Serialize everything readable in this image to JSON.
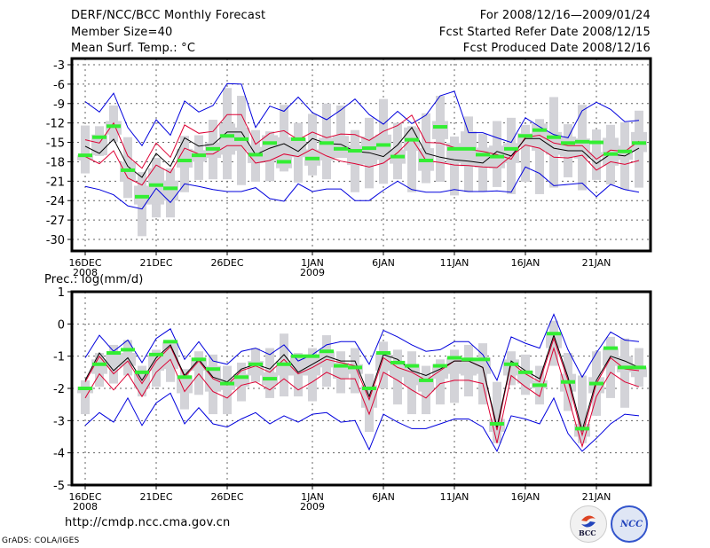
{
  "header": {
    "title": "DERF/NCC/BCC Monthly Forecast",
    "member_size": "Member Size=40",
    "top_variable": "Mean Surf. Temp.: °C",
    "period": "For 2008/12/16—2009/01/24",
    "started_date": "Fcst Started Refer Date 2008/12/15",
    "produced_date": "Fcst Produced Date 2008/12/16"
  },
  "footer": {
    "url": "http://cmdp.ncc.cma.gov.cn",
    "grads_credit": "GrADS: COLA/IGES",
    "logo_bcc": "BCC",
    "logo_ncc": "NCC"
  },
  "colors": {
    "envelope": "#0000dd",
    "percentile": "#dd0033",
    "mean": "#000000",
    "observed": "#33ee33",
    "spread": "#d3d3d8"
  },
  "chart_data": [
    {
      "type": "line",
      "title": "Mean Surf. Temp.: °C",
      "xlabel": "",
      "ylabel": "",
      "ylim": [
        -32,
        -2
      ],
      "yticks": [
        -3,
        -6,
        -9,
        -12,
        -15,
        -18,
        -21,
        -24,
        -27,
        -30
      ],
      "ytick_labels": [
        "-3",
        "-6",
        "-9",
        "-12",
        "-15",
        "-18",
        "-21",
        "-24",
        "-27",
        "-30"
      ],
      "xticks": [
        0,
        5,
        10,
        16,
        21,
        26,
        31,
        36
      ],
      "xtick_labels": [
        "16DEC",
        "21DEC",
        "26DEC",
        "1JAN",
        "6JAN",
        "11JAN",
        "16JAN",
        "21JAN"
      ],
      "xtick_sublabels": [
        "2008",
        "",
        "",
        "2009",
        "",
        "",
        "",
        ""
      ],
      "grid": true,
      "x_days": 40,
      "series": [
        {
          "name": "max",
          "color_key": "envelope",
          "values": [
            -8.7,
            -10.3,
            -7.4,
            -12.7,
            -15.5,
            -11.5,
            -13.9,
            -8.6,
            -10.3,
            -9.3,
            -5.9,
            -6.0,
            -12.7,
            -9.4,
            -10.2,
            -8.0,
            -10.4,
            -11.5,
            -10.0,
            -8.3,
            -10.7,
            -12.2,
            -10.2,
            -12.1,
            -10.8,
            -7.8,
            -7.1,
            -13.5,
            -13.5,
            -14.3,
            -15.0,
            -11.2,
            -12.6,
            -13.8,
            -14.3,
            -10.1,
            -8.8,
            -9.9,
            -11.8,
            -11.6
          ]
        },
        {
          "name": "min",
          "color_key": "envelope",
          "values": [
            -21.8,
            -22.3,
            -23.1,
            -24.8,
            -25.3,
            -22.1,
            -24.3,
            -21.4,
            -21.8,
            -22.3,
            -22.6,
            -22.6,
            -22.0,
            -23.7,
            -24.1,
            -21.4,
            -22.6,
            -22.2,
            -22.2,
            -24.0,
            -24.0,
            -22.4,
            -21.0,
            -22.3,
            -22.7,
            -22.7,
            -22.3,
            -22.6,
            -22.6,
            -22.5,
            -22.7,
            -18.8,
            -19.8,
            -21.7,
            -21.5,
            -21.3,
            -23.4,
            -21.5,
            -22.3,
            -22.7
          ]
        },
        {
          "name": "upper",
          "color_key": "percentile",
          "values": [
            -14.6,
            -15.1,
            -12.0,
            -17.1,
            -19.0,
            -15.1,
            -17.3,
            -12.3,
            -13.6,
            -13.3,
            -10.7,
            -10.7,
            -15.3,
            -13.6,
            -13.2,
            -14.6,
            -13.4,
            -14.3,
            -13.7,
            -13.8,
            -14.7,
            -13.3,
            -12.4,
            -10.8,
            -15.0,
            -15.1,
            -15.8,
            -16.1,
            -16.4,
            -16.9,
            -17.6,
            -14.2,
            -13.9,
            -15.1,
            -15.5,
            -15.5,
            -17.6,
            -16.2,
            -16.4,
            -14.8
          ]
        },
        {
          "name": "lower",
          "color_key": "percentile",
          "values": [
            -17.2,
            -18.3,
            -16.3,
            -20.5,
            -21.6,
            -18.5,
            -19.7,
            -15.9,
            -16.8,
            -16.8,
            -15.5,
            -15.5,
            -18.2,
            -17.8,
            -16.8,
            -17.2,
            -16.0,
            -17.1,
            -17.9,
            -18.3,
            -18.8,
            -18.2,
            -16.6,
            -14.4,
            -17.8,
            -18.1,
            -18.5,
            -18.6,
            -18.8,
            -18.9,
            -17.1,
            -15.4,
            -15.9,
            -17.3,
            -17.4,
            -17.0,
            -19.3,
            -18.0,
            -18.4,
            -17.8
          ]
        },
        {
          "name": "ensemble_mean",
          "color_key": "mean",
          "values": [
            -15.6,
            -16.7,
            -14.5,
            -18.7,
            -20.4,
            -16.7,
            -18.7,
            -14.3,
            -15.6,
            -15.3,
            -13.4,
            -13.4,
            -16.9,
            -15.9,
            -15.2,
            -16.4,
            -14.4,
            -15.2,
            -15.3,
            -16.4,
            -16.6,
            -17.2,
            -15.4,
            -12.7,
            -16.7,
            -17.3,
            -17.7,
            -17.9,
            -18.2,
            -16.4,
            -17.1,
            -14.4,
            -14.4,
            -15.9,
            -16.3,
            -16.3,
            -18.3,
            -16.8,
            -17.1,
            -15.9
          ]
        },
        {
          "name": "observed",
          "color_key": "observed",
          "values": [
            -17.0,
            -14.2,
            -12.5,
            -19.3,
            -23.4,
            -21.6,
            -22.1,
            -17.8,
            -17.0,
            -16.0,
            -14.0,
            -14.5,
            -16.9,
            -15.1,
            -18.0,
            -14.5,
            -17.5,
            -15.1,
            -16.0,
            -16.3,
            -15.9,
            -15.4,
            -17.2,
            -14.6,
            -17.8,
            -12.6,
            -16.0,
            -16.0,
            -16.9,
            -17.2,
            -16.0,
            -14.0,
            -13.1,
            -14.2,
            -15.1,
            -14.9,
            -15.0,
            -16.8,
            -16.4,
            -15.1
          ]
        },
        {
          "name": "spread_hi",
          "color_key": "spread",
          "values": [
            -12.4,
            -12.5,
            -9.3,
            -14.2,
            -19.6,
            -17.4,
            -19.0,
            -14.0,
            -13.9,
            -11.5,
            -6.6,
            -7.8,
            -13.1,
            -13.3,
            -9.2,
            -12.0,
            -10.6,
            -9.0,
            -9.3,
            -13.1,
            -11.2,
            -8.3,
            -12.0,
            -12.5,
            -10.5,
            -7.8,
            -14.1,
            -11.0,
            -13.7,
            -11.7,
            -11.2,
            -12.3,
            -11.4,
            -8.0,
            -12.2,
            -9.2,
            -13.0,
            -12.3,
            -11.9,
            -10.1
          ]
        },
        {
          "name": "spread_lo",
          "color_key": "spread",
          "values": [
            -19.8,
            -17.1,
            -14.9,
            -23.6,
            -29.5,
            -26.6,
            -26.6,
            -22.7,
            -20.8,
            -20.7,
            -20.7,
            -21.6,
            -21.1,
            -21.0,
            -19.5,
            -21.2,
            -20.1,
            -20.7,
            -17.3,
            -22.7,
            -22.1,
            -21.4,
            -20.7,
            -22.7,
            -21.3,
            -21.1,
            -23.2,
            -22.7,
            -22.6,
            -21.9,
            -23.0,
            -21.1,
            -23.0,
            -22.0,
            -20.4,
            -22.4,
            -20.8,
            -21.5,
            -22.3,
            -22.0
          ]
        },
        {
          "name": "inner_hi",
          "color_key": "spread",
          "values": [
            -17.0,
            -13.8,
            -11.7,
            -18.0,
            -21.7,
            -19.0,
            -20.9,
            -16.0,
            -16.2,
            -15.0,
            -12.1,
            -12.7,
            -15.7,
            -13.9,
            -14.2,
            -14.3,
            -16.1,
            -14.3,
            -14.0,
            -15.4,
            -14.1,
            -13.8,
            -16.1,
            -12.7,
            -15.9,
            -11.7,
            -15.1,
            -13.3,
            -15.8,
            -15.5,
            -15.1,
            -13.6,
            -12.1,
            -13.4,
            -14.1,
            -14.4,
            -16.5,
            -14.3,
            -15.5,
            -13.4
          ]
        },
        {
          "name": "inner_lo",
          "color_key": "spread",
          "values": [
            -17.8,
            -17.0,
            -13.8,
            -21.1,
            -24.6,
            -24.6,
            -24.0,
            -18.9,
            -18.0,
            -17.4,
            -16.9,
            -16.3,
            -18.2,
            -17.9,
            -19.0,
            -17.3,
            -18.6,
            -17.8,
            -17.4,
            -18.5,
            -18.4,
            -17.7,
            -18.3,
            -16.3,
            -19.4,
            -14.5,
            -18.2,
            -18.7,
            -18.9,
            -19.0,
            -18.2,
            -15.7,
            -16.3,
            -16.9,
            -17.2,
            -17.5,
            -17.3,
            -18.6,
            -17.7,
            -16.5
          ]
        }
      ]
    },
    {
      "type": "line",
      "title": "Prec.: log(mm/d)",
      "xlabel": "",
      "ylabel": "",
      "ylim": [
        -5,
        1
      ],
      "yticks": [
        1,
        0,
        -1,
        -2,
        -3,
        -4,
        -5
      ],
      "ytick_labels": [
        "1",
        "0",
        "-1",
        "-2",
        "-3",
        "-4",
        "-5"
      ],
      "xticks": [
        0,
        5,
        10,
        16,
        21,
        26,
        31,
        36
      ],
      "xtick_labels": [
        "16DEC",
        "21DEC",
        "26DEC",
        "1JAN",
        "6JAN",
        "11JAN",
        "16JAN",
        "21JAN"
      ],
      "xtick_sublabels": [
        "2008",
        "",
        "",
        "2009",
        "",
        "",
        "",
        ""
      ],
      "grid": true,
      "x_days": 40,
      "series": [
        {
          "name": "max",
          "color_key": "envelope",
          "values": [
            -1.05,
            -0.35,
            -0.85,
            -0.5,
            -1.2,
            -0.45,
            -0.15,
            -1.1,
            -0.55,
            -1.15,
            -1.25,
            -0.85,
            -0.75,
            -0.95,
            -0.65,
            -1.15,
            -0.95,
            -0.65,
            -0.55,
            -0.55,
            -1.25,
            -0.2,
            -0.4,
            -0.65,
            -0.85,
            -0.8,
            -0.55,
            -0.55,
            -0.95,
            -1.75,
            -0.4,
            -0.6,
            -0.75,
            0.3,
            -0.8,
            -1.65,
            -0.9,
            -0.25,
            -0.5,
            -0.55
          ]
        },
        {
          "name": "min",
          "color_key": "envelope",
          "values": [
            -3.15,
            -2.75,
            -3.05,
            -2.3,
            -3.15,
            -2.45,
            -2.15,
            -3.1,
            -2.6,
            -3.1,
            -3.2,
            -2.95,
            -2.75,
            -3.1,
            -2.85,
            -3.05,
            -2.8,
            -2.75,
            -3.05,
            -3.0,
            -3.9,
            -2.8,
            -3.05,
            -3.25,
            -3.25,
            -3.1,
            -2.95,
            -2.95,
            -3.2,
            -3.95,
            -2.85,
            -2.95,
            -3.1,
            -2.3,
            -3.4,
            -3.95,
            -3.55,
            -3.1,
            -2.8,
            -2.85
          ]
        },
        {
          "name": "upper",
          "color_key": "percentile",
          "values": [
            -1.8,
            -1.0,
            -1.55,
            -1.15,
            -1.85,
            -1.15,
            -0.7,
            -1.65,
            -1.15,
            -1.7,
            -1.9,
            -1.45,
            -1.3,
            -1.5,
            -1.1,
            -1.55,
            -1.35,
            -1.1,
            -1.2,
            -1.3,
            -2.35,
            -1.05,
            -1.35,
            -1.5,
            -1.75,
            -1.45,
            -1.15,
            -1.15,
            -1.35,
            -3.3,
            -1.2,
            -1.55,
            -1.8,
            -0.45,
            -1.75,
            -3.45,
            -1.85,
            -1.05,
            -1.4,
            -1.45
          ]
        },
        {
          "name": "lower",
          "color_key": "percentile",
          "values": [
            -2.3,
            -1.55,
            -2.05,
            -1.55,
            -2.25,
            -1.5,
            -1.1,
            -2.1,
            -1.55,
            -2.1,
            -2.3,
            -1.9,
            -1.8,
            -2.05,
            -1.7,
            -2.05,
            -1.8,
            -1.5,
            -1.7,
            -1.7,
            -2.8,
            -1.5,
            -1.75,
            -2.05,
            -2.3,
            -1.85,
            -1.75,
            -1.75,
            -1.85,
            -3.7,
            -1.6,
            -1.95,
            -2.25,
            -0.75,
            -2.25,
            -3.8,
            -2.25,
            -1.5,
            -1.8,
            -1.95
          ]
        },
        {
          "name": "ensemble_mean",
          "color_key": "mean",
          "values": [
            -1.75,
            -0.9,
            -1.45,
            -1.05,
            -1.75,
            -1.05,
            -0.65,
            -1.6,
            -1.1,
            -1.65,
            -1.8,
            -1.4,
            -1.25,
            -1.4,
            -0.95,
            -1.5,
            -1.25,
            -1.0,
            -1.15,
            -1.15,
            -2.25,
            -0.95,
            -1.1,
            -1.45,
            -1.6,
            -1.4,
            -1.15,
            -1.15,
            -1.35,
            -3.2,
            -1.15,
            -1.45,
            -1.7,
            -0.35,
            -1.65,
            -3.3,
            -1.75,
            -1.0,
            -1.15,
            -1.35
          ]
        },
        {
          "name": "observed",
          "color_key": "observed",
          "values": [
            -2.0,
            -1.25,
            -0.9,
            -0.8,
            -1.5,
            -0.95,
            -0.55,
            -1.65,
            -1.1,
            -1.4,
            -1.85,
            -1.65,
            -1.25,
            -1.7,
            -1.25,
            -1.0,
            -1.0,
            -0.85,
            -1.3,
            -1.35,
            -2.0,
            -0.9,
            -1.2,
            -1.3,
            -1.75,
            -1.3,
            -1.05,
            -1.1,
            -1.1,
            -3.1,
            -1.25,
            -1.5,
            -1.9,
            -0.3,
            -1.8,
            -3.25,
            -1.85,
            -0.75,
            -1.35,
            -1.35
          ]
        },
        {
          "name": "spread_hi",
          "color_key": "spread",
          "values": [
            -1.75,
            -0.9,
            -0.65,
            -0.5,
            -1.3,
            -0.8,
            -0.5,
            -1.4,
            -0.85,
            -0.95,
            -1.3,
            -1.2,
            -0.75,
            -0.75,
            -0.3,
            -0.9,
            -0.75,
            -0.35,
            -0.85,
            -0.75,
            -1.55,
            -0.55,
            -0.8,
            -0.85,
            -1.3,
            -1.1,
            -0.8,
            -0.65,
            -0.6,
            -1.8,
            -0.85,
            -0.95,
            -1.3,
            0.1,
            -0.9,
            -1.6,
            -0.85,
            -0.4,
            -0.45,
            -0.75
          ]
        },
        {
          "name": "spread_lo",
          "color_key": "spread",
          "values": [
            -2.8,
            -1.95,
            -1.85,
            -1.6,
            -2.25,
            -1.95,
            -1.8,
            -2.65,
            -2.2,
            -2.8,
            -2.8,
            -2.4,
            -1.8,
            -2.3,
            -2.25,
            -2.25,
            -2.4,
            -1.95,
            -2.15,
            -2.15,
            -3.35,
            -2.0,
            -2.5,
            -2.8,
            -2.8,
            -2.5,
            -2.45,
            -2.25,
            -2.5,
            -3.7,
            -1.9,
            -2.2,
            -2.5,
            -1.3,
            -2.7,
            -3.7,
            -2.85,
            -2.3,
            -2.6,
            -1.95
          ]
        },
        {
          "name": "inner_hi",
          "color_key": "spread",
          "values": [
            -1.95,
            -1.1,
            -0.95,
            -0.9,
            -1.45,
            -0.95,
            -0.55,
            -1.6,
            -1.05,
            -1.3,
            -1.7,
            -1.55,
            -1.15,
            -1.5,
            -1.15,
            -1.0,
            -0.95,
            -0.85,
            -1.2,
            -1.25,
            -1.9,
            -0.9,
            -1.15,
            -1.25,
            -1.6,
            -1.25,
            -1.05,
            -1.05,
            -1.05,
            -2.95,
            -1.1,
            -1.45,
            -1.75,
            -0.3,
            -1.55,
            -3.1,
            -1.65,
            -0.75,
            -1.0,
            -1.35
          ]
        },
        {
          "name": "inner_lo",
          "color_key": "spread",
          "values": [
            -2.15,
            -1.55,
            -1.35,
            -1.3,
            -2.0,
            -1.45,
            -1.4,
            -2.15,
            -1.45,
            -2.1,
            -2.05,
            -1.95,
            -1.6,
            -1.9,
            -1.6,
            -1.6,
            -1.6,
            -1.35,
            -1.7,
            -1.55,
            -2.6,
            -1.45,
            -1.65,
            -1.9,
            -2.1,
            -1.7,
            -1.55,
            -1.6,
            -1.55,
            -3.35,
            -1.6,
            -1.85,
            -2.0,
            -0.75,
            -2.1,
            -3.5,
            -2.15,
            -1.3,
            -1.5,
            -1.65
          ]
        }
      ]
    }
  ]
}
